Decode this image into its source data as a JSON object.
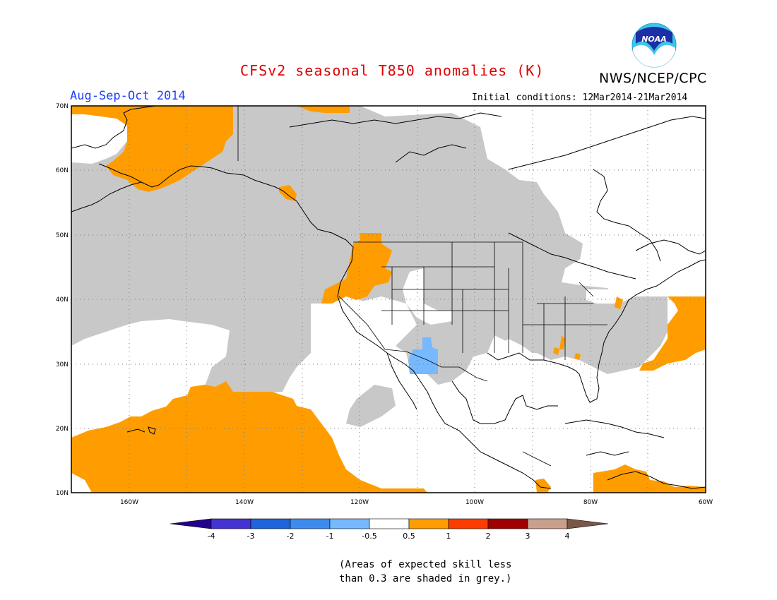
{
  "header": {
    "title": "CFSv2 seasonal T850 anomalies (K)",
    "season": "Aug-Sep-Oct 2014",
    "initial_conditions": "Initial conditions: 12Mar2014-21Mar2014",
    "agency": "NWS/NCEP/CPC",
    "logo_text": "NOAA"
  },
  "map": {
    "projection": "lat-lon",
    "lon_range": [
      -170,
      -60
    ],
    "lat_range": [
      10,
      70
    ],
    "lat_labels": [
      "70N",
      "60N",
      "50N",
      "40N",
      "30N",
      "20N",
      "10N"
    ],
    "lon_labels": [
      "160W",
      "140W",
      "120W",
      "100W",
      "80W",
      "60W"
    ],
    "regions": [
      {
        "category": "positive 0.5 to 1",
        "color": "#ff9d00",
        "areas": [
          "Alaska",
          "US Pacific Northwest",
          "Central Pacific near Hawaii",
          "Western Atlantic",
          "Caribbean"
        ]
      },
      {
        "category": "negative -1 to -0.5",
        "color": "#76b9ff",
        "areas": [
          "US Southwest / northern Mexico"
        ]
      },
      {
        "category": "low skill (grey)",
        "color": "#c8c8c8",
        "areas": [
          "Northeast Pacific",
          "Western Canada",
          "Central United States",
          "Southeast United States",
          "Gulf region"
        ]
      }
    ]
  },
  "legend": {
    "bins": [
      {
        "color": "#24008c"
      },
      {
        "color": "#4432d2"
      },
      {
        "color": "#1e64dc"
      },
      {
        "color": "#3c8cf0"
      },
      {
        "color": "#76b9ff"
      },
      {
        "color": "#ffffff"
      },
      {
        "color": "#ff9d00"
      },
      {
        "color": "#ff3c00"
      },
      {
        "color": "#a00000"
      },
      {
        "color": "#c8a08c"
      },
      {
        "color": "#7a5848"
      }
    ],
    "ticks": [
      "-4",
      "-3",
      "-2",
      "-1",
      "-0.5",
      "0.5",
      "1",
      "2",
      "3",
      "4"
    ]
  },
  "footnote": {
    "line1": "(Areas of expected skill less",
    "line2": "than 0.3 are shaded in grey.)"
  }
}
